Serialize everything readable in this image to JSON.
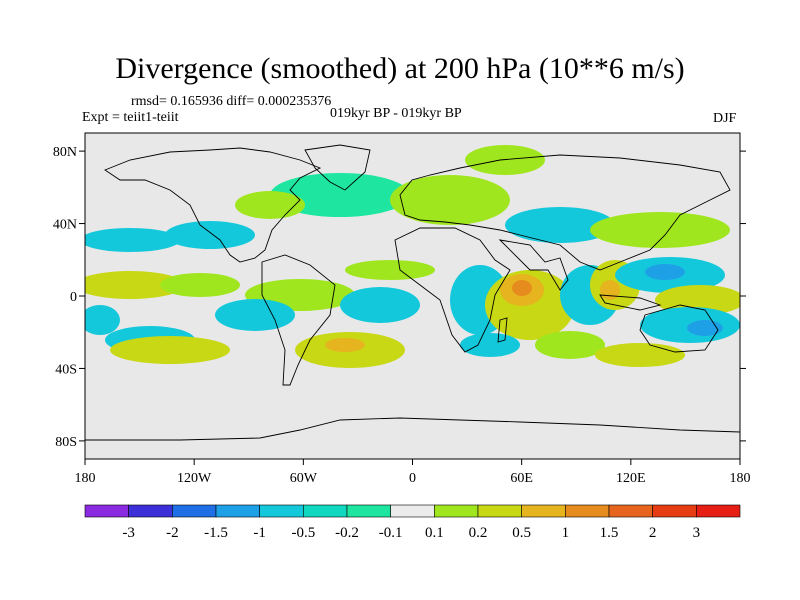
{
  "header": {
    "title": "Divergence (smoothed) at 200 hPa (10**6 m/s)",
    "stats": "rmsd= 0.165936 diff= 0.000235376",
    "experiment": "Expt = teiit1-teiit",
    "period": "019kyr BP - 019kyr BP",
    "season": "DJF"
  },
  "map": {
    "projection": "cylindrical-equidistant",
    "lon_range": [
      -180,
      180
    ],
    "lat_range": [
      -90,
      90
    ],
    "background_color": "#e8e8e8",
    "coastline_color": "#000000",
    "lat_ticks": [
      {
        "lat": 80,
        "label": "80N"
      },
      {
        "lat": 40,
        "label": "40N"
      },
      {
        "lat": 0,
        "label": "0"
      },
      {
        "lat": -40,
        "label": "40S"
      },
      {
        "lat": -80,
        "label": "80S"
      }
    ],
    "lon_ticks": [
      {
        "lon": -180,
        "label": "180"
      },
      {
        "lon": -120,
        "label": "120W"
      },
      {
        "lon": -60,
        "label": "60W"
      },
      {
        "lon": 0,
        "label": "0"
      },
      {
        "lon": 60,
        "label": "60E"
      },
      {
        "lon": 120,
        "label": "120E"
      },
      {
        "lon": 180,
        "label": "180"
      }
    ]
  },
  "colorbar": {
    "colors": [
      "#8a2be2",
      "#3c2fd8",
      "#1e6fe6",
      "#1ea0e6",
      "#14c8dc",
      "#10d8c0",
      "#1ee6a0",
      "#ebebeb",
      "#a0e61e",
      "#c8d814",
      "#e6b41e",
      "#e68c1e",
      "#e6641e",
      "#e63c14",
      "#e61e14"
    ],
    "labels": [
      "-3",
      "-2",
      "-1.5",
      "-1",
      "-0.5",
      "-0.2",
      "-0.1",
      "0.1",
      "0.2",
      "0.5",
      "1",
      "1.5",
      "2",
      "3"
    ]
  },
  "chart_data": {
    "type": "heatmap",
    "title": "Divergence (smoothed) at 200 hPa (10**6 m/s)",
    "variable": "Divergence (smoothed)",
    "level": "200 hPa",
    "units": "10**6 m/s",
    "season": "DJF",
    "levels": [
      -3,
      -2,
      -1.5,
      -1,
      -0.5,
      -0.2,
      -0.1,
      0.1,
      0.2,
      0.5,
      1,
      1.5,
      2,
      3
    ],
    "notable_features": [
      {
        "lon": 60,
        "lat": 0,
        "value": 1.5,
        "sign": "positive"
      },
      {
        "lon": 150,
        "lat": 5,
        "value": -1,
        "sign": "negative"
      },
      {
        "lon": 150,
        "lat": -20,
        "value": -1,
        "sign": "negative"
      },
      {
        "lon": 105,
        "lat": 0,
        "value": 1,
        "sign": "positive"
      },
      {
        "lon": -90,
        "lat": -10,
        "value": -0.5,
        "sign": "negative"
      },
      {
        "lon": -30,
        "lat": -30,
        "value": 0.5,
        "sign": "positive"
      }
    ]
  }
}
